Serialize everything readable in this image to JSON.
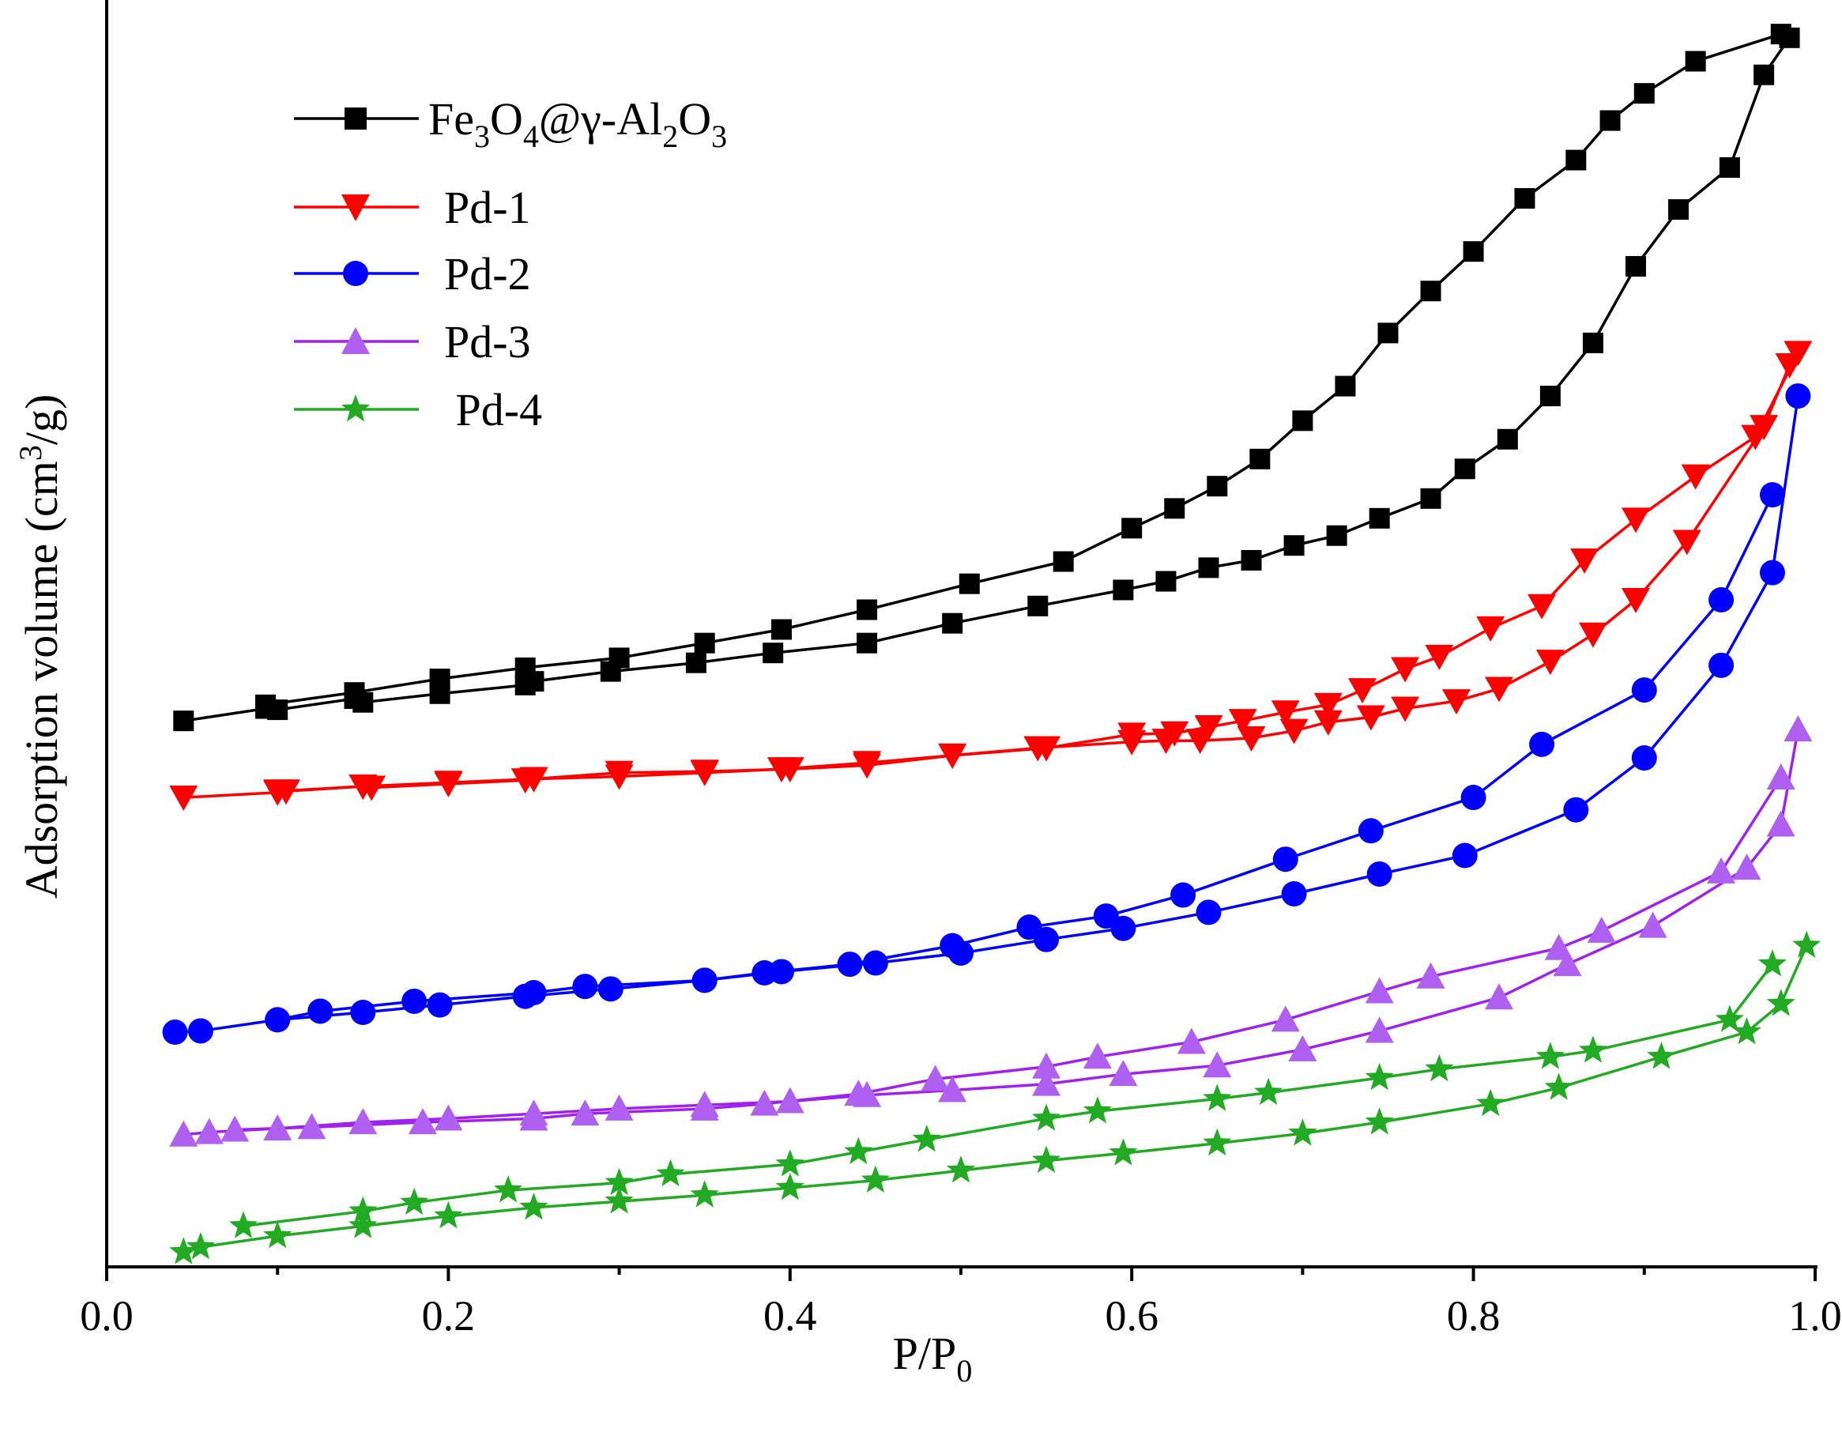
{
  "chart_data": {
    "type": "line",
    "title": "",
    "xlabel": {
      "main": "P/P",
      "sub": "0"
    },
    "ylabel": {
      "pre": "Adsorption volume (cm",
      "sup": "3",
      "post": "/g)"
    },
    "xlim": [
      0.0,
      1.0
    ],
    "ylim": [
      0,
      1
    ],
    "xticks": [
      "0.0",
      "0.2",
      "0.4",
      "0.6",
      "0.8",
      "1.0"
    ],
    "xtick_values": [
      0.0,
      0.2,
      0.4,
      0.6,
      0.8,
      1.0
    ],
    "yticks_shown": false,
    "grid": false,
    "legend_position": "top-left",
    "legend_labels": {
      "fe3o4": {
        "parts": [
          {
            "t": "Fe",
            "sub": false
          },
          {
            "t": "3",
            "sub": true
          },
          {
            "t": "O",
            "sub": false
          },
          {
            "t": "4",
            "sub": true
          },
          {
            "t": "@γ-Al",
            "sub": false
          },
          {
            "t": "2",
            "sub": true
          },
          {
            "t": "O",
            "sub": false
          },
          {
            "t": "3",
            "sub": true
          }
        ]
      },
      "pd1": "Pd-1",
      "pd2": "Pd-2",
      "pd3": "Pd-3",
      "pd4": " Pd-4"
    },
    "series": [
      {
        "id": "fe3o4",
        "name": "Fe3O4@γ-Al2O3",
        "color": "#000000",
        "marker": "square",
        "adsorption": {
          "x": [
            0.045,
            0.093,
            0.1,
            0.145,
            0.15,
            0.195,
            0.245,
            0.25,
            0.295,
            0.345,
            0.39,
            0.445,
            0.495,
            0.545,
            0.595,
            0.62,
            0.645,
            0.67,
            0.695,
            0.72,
            0.745,
            0.775,
            0.795,
            0.82,
            0.845,
            0.87,
            0.895,
            0.92,
            0.95,
            0.97,
            0.985
          ],
          "y": [
            0.442,
            0.452,
            0.451,
            0.46,
            0.457,
            0.464,
            0.471,
            0.474,
            0.482,
            0.489,
            0.497,
            0.505,
            0.521,
            0.535,
            0.548,
            0.555,
            0.566,
            0.572,
            0.584,
            0.592,
            0.606,
            0.622,
            0.646,
            0.67,
            0.705,
            0.748,
            0.81,
            0.856,
            0.89,
            0.965,
            0.995
          ]
        },
        "desorption": {
          "x": [
            0.98,
            0.93,
            0.9,
            0.88,
            0.86,
            0.83,
            0.8,
            0.775,
            0.75,
            0.725,
            0.7,
            0.675,
            0.65,
            0.625,
            0.6,
            0.56,
            0.505,
            0.445,
            0.395,
            0.35,
            0.3,
            0.245,
            0.195,
            0.145,
            0.093
          ],
          "y": [
            0.998,
            0.976,
            0.95,
            0.928,
            0.896,
            0.865,
            0.822,
            0.79,
            0.756,
            0.713,
            0.685,
            0.654,
            0.632,
            0.614,
            0.598,
            0.571,
            0.553,
            0.532,
            0.516,
            0.505,
            0.493,
            0.485,
            0.476,
            0.465,
            0.455
          ]
        }
      },
      {
        "id": "pd1",
        "name": "Pd-1",
        "color": "#ff0000",
        "marker": "triangle-down",
        "adsorption": {
          "x": [
            0.045,
            0.1,
            0.105,
            0.15,
            0.155,
            0.2,
            0.245,
            0.25,
            0.3,
            0.35,
            0.395,
            0.445,
            0.495,
            0.545,
            0.6,
            0.62,
            0.64,
            0.67,
            0.695,
            0.715,
            0.74,
            0.76,
            0.79,
            0.815,
            0.845,
            0.87,
            0.895,
            0.925,
            0.97,
            0.985
          ],
          "y": [
            0.38,
            0.384,
            0.385,
            0.389,
            0.388,
            0.391,
            0.394,
            0.395,
            0.397,
            0.4,
            0.403,
            0.408,
            0.414,
            0.42,
            0.425,
            0.426,
            0.426,
            0.428,
            0.434,
            0.441,
            0.445,
            0.452,
            0.458,
            0.468,
            0.49,
            0.512,
            0.54,
            0.587,
            0.68,
            0.73
          ]
        },
        "desorption": {
          "x": [
            0.99,
            0.965,
            0.93,
            0.895,
            0.865,
            0.84,
            0.81,
            0.78,
            0.76,
            0.735,
            0.715,
            0.69,
            0.665,
            0.645,
            0.625,
            0.6,
            0.55,
            0.495,
            0.445,
            0.4,
            0.35,
            0.3,
            0.25,
            0.2,
            0.15,
            0.1
          ],
          "y": [
            0.74,
            0.672,
            0.64,
            0.605,
            0.572,
            0.535,
            0.517,
            0.494,
            0.484,
            0.467,
            0.455,
            0.449,
            0.442,
            0.437,
            0.432,
            0.431,
            0.42,
            0.414,
            0.406,
            0.403,
            0.401,
            0.4,
            0.395,
            0.392,
            0.389,
            0.385
          ]
        }
      },
      {
        "id": "pd2",
        "name": "Pd-2",
        "color": "#0000ff",
        "marker": "circle",
        "adsorption": {
          "x": [
            0.04,
            0.055,
            0.1,
            0.15,
            0.195,
            0.245,
            0.295,
            0.35,
            0.395,
            0.45,
            0.5,
            0.55,
            0.595,
            0.645,
            0.695,
            0.745,
            0.795,
            0.86,
            0.9,
            0.945,
            0.975,
            0.99
          ],
          "y": [
            0.19,
            0.191,
            0.2,
            0.206,
            0.212,
            0.219,
            0.225,
            0.232,
            0.239,
            0.246,
            0.254,
            0.265,
            0.274,
            0.287,
            0.302,
            0.318,
            0.333,
            0.37,
            0.412,
            0.487,
            0.562,
            0.705
          ]
        },
        "desorption": {
          "x": [
            0.975,
            0.945,
            0.9,
            0.84,
            0.8,
            0.74,
            0.69,
            0.63,
            0.585,
            0.54,
            0.495,
            0.435,
            0.385,
            0.35,
            0.28,
            0.25,
            0.18,
            0.125,
            0.1
          ],
          "y": [
            0.625,
            0.54,
            0.467,
            0.423,
            0.38,
            0.353,
            0.33,
            0.301,
            0.284,
            0.275,
            0.26,
            0.245,
            0.238,
            0.232,
            0.227,
            0.222,
            0.215,
            0.207,
            0.2
          ]
        }
      },
      {
        "id": "pd3",
        "name": "Pd-3",
        "color": "#a020f0",
        "marker": "triangle-up",
        "adsorption": {
          "x": [
            0.045,
            0.06,
            0.1,
            0.15,
            0.2,
            0.25,
            0.3,
            0.35,
            0.4,
            0.445,
            0.495,
            0.55,
            0.595,
            0.65,
            0.7,
            0.745,
            0.815,
            0.855,
            0.905,
            0.96,
            0.98,
            0.99
          ],
          "y": [
            0.107,
            0.109,
            0.112,
            0.117,
            0.12,
            0.124,
            0.128,
            0.131,
            0.134,
            0.139,
            0.143,
            0.148,
            0.156,
            0.163,
            0.176,
            0.191,
            0.218,
            0.245,
            0.276,
            0.323,
            0.358,
            0.435
          ]
        },
        "desorption": {
          "x": [
            0.98,
            0.945,
            0.875,
            0.85,
            0.775,
            0.745,
            0.69,
            0.635,
            0.58,
            0.55,
            0.485,
            0.44,
            0.385,
            0.35,
            0.28,
            0.25,
            0.185,
            0.12,
            0.075
          ],
          "y": [
            0.396,
            0.32,
            0.272,
            0.258,
            0.235,
            0.223,
            0.2,
            0.182,
            0.17,
            0.162,
            0.152,
            0.14,
            0.132,
            0.128,
            0.124,
            0.12,
            0.117,
            0.113,
            0.111
          ]
        }
      },
      {
        "id": "pd4",
        "name": "Pd-4",
        "color": "#22aa22",
        "marker": "star",
        "adsorption": {
          "x": [
            0.045,
            0.055,
            0.1,
            0.15,
            0.2,
            0.25,
            0.3,
            0.35,
            0.4,
            0.45,
            0.5,
            0.55,
            0.595,
            0.65,
            0.7,
            0.745,
            0.81,
            0.85,
            0.91,
            0.96,
            0.98,
            0.995
          ],
          "y": [
            0.012,
            0.016,
            0.025,
            0.033,
            0.041,
            0.048,
            0.053,
            0.058,
            0.064,
            0.07,
            0.078,
            0.086,
            0.092,
            0.1,
            0.108,
            0.117,
            0.132,
            0.145,
            0.17,
            0.19,
            0.213,
            0.26
          ]
        },
        "desorption": {
          "x": [
            0.975,
            0.95,
            0.87,
            0.845,
            0.78,
            0.745,
            0.68,
            0.65,
            0.58,
            0.55,
            0.48,
            0.44,
            0.4,
            0.33,
            0.3,
            0.235,
            0.18,
            0.15,
            0.08
          ],
          "y": [
            0.245,
            0.2,
            0.175,
            0.17,
            0.16,
            0.153,
            0.141,
            0.136,
            0.126,
            0.12,
            0.103,
            0.093,
            0.083,
            0.075,
            0.068,
            0.062,
            0.052,
            0.045,
            0.033
          ]
        }
      }
    ]
  }
}
